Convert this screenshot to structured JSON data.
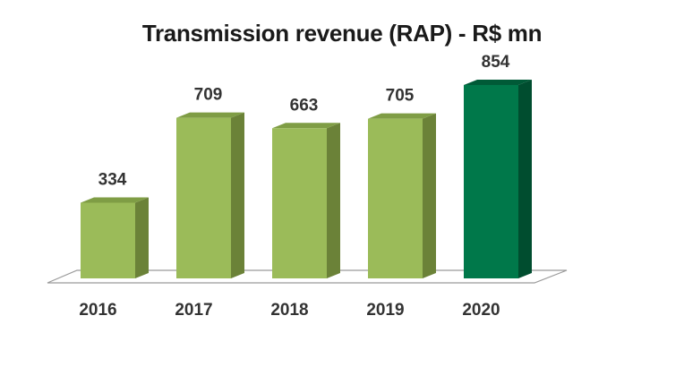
{
  "chart_data": {
    "type": "bar",
    "title": "Transmission revenue (RAP) - R$ mn",
    "categories": [
      "2016",
      "2017",
      "2018",
      "2019",
      "2020"
    ],
    "values": [
      334,
      709,
      663,
      705,
      854
    ],
    "data_labels": [
      "334",
      "709",
      "663",
      "705",
      "854"
    ],
    "xlabel": "",
    "ylabel": "",
    "ylim": [
      0,
      900
    ],
    "grid": false,
    "legend": "none",
    "style": "3d-column",
    "colors": {
      "default_front": "#9bbb59",
      "default_top": "#7f9d45",
      "default_side": "#6b8238",
      "highlight_front": "#00784a",
      "highlight_top": "#005a37",
      "highlight_side": "#004d2f",
      "highlight_index": 4
    }
  }
}
